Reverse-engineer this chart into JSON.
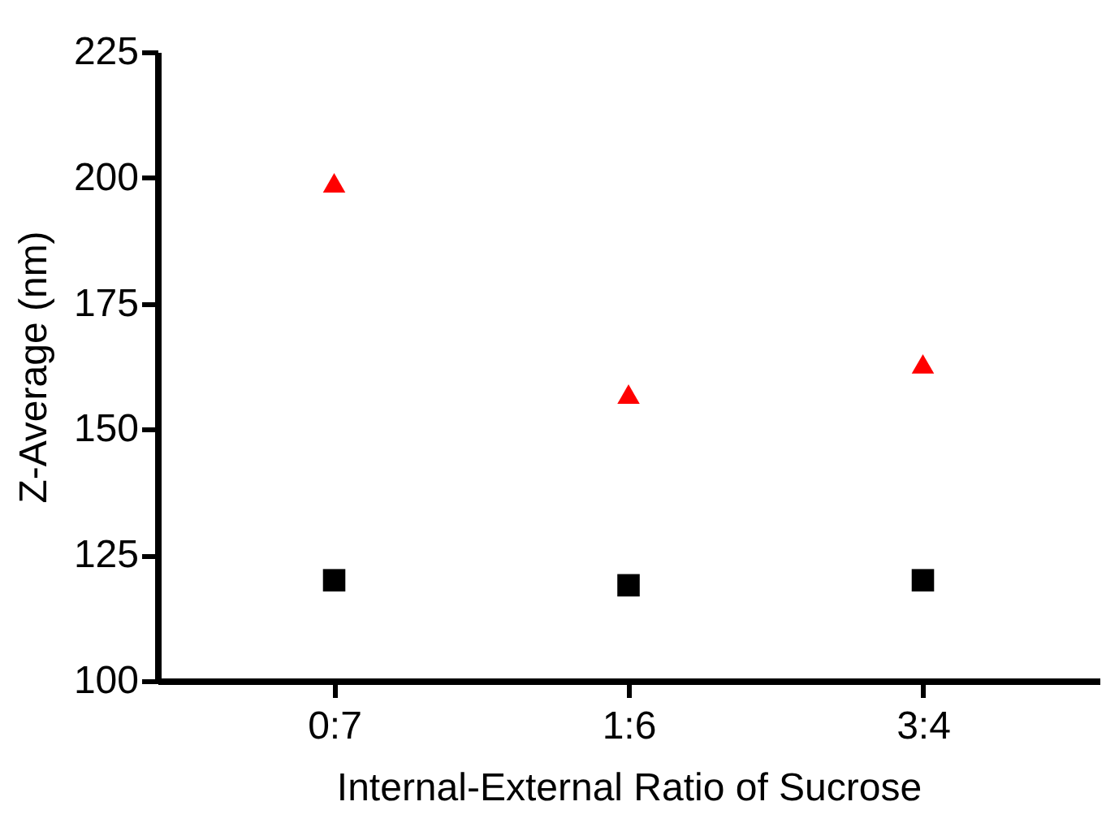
{
  "chart_data": {
    "type": "scatter",
    "xlabel": "Internal-External Ratio of Sucrose",
    "ylabel": "Z-Average (nm)",
    "categories": [
      "0:7",
      "1:6",
      "3:4"
    ],
    "series": [
      {
        "color": "#ff0000",
        "marker": "triangle",
        "values": [
          199,
          157,
          163
        ]
      },
      {
        "color": "#000000",
        "marker": "square",
        "values": [
          120,
          119,
          120
        ]
      }
    ],
    "ylim": [
      100,
      225
    ],
    "yticks": [
      100,
      125,
      150,
      175,
      200,
      225
    ],
    "grid": false
  }
}
